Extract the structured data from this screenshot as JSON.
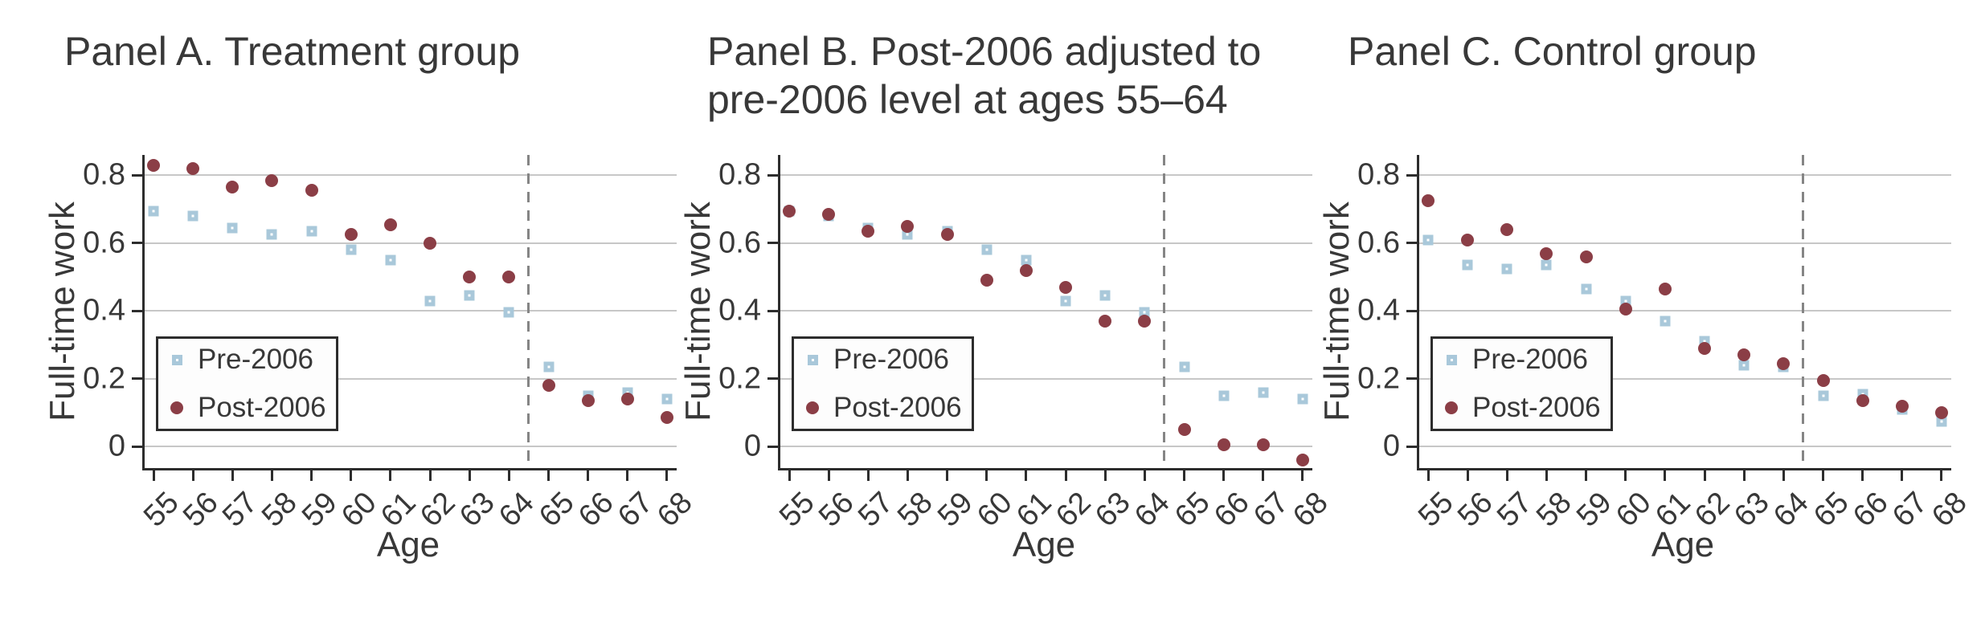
{
  "figure": {
    "colors": {
      "pre_marker": "#a9c8da",
      "post_marker": "#8b3e46",
      "grid": "#c7c7c7",
      "axis": "#2d2d2d",
      "dashed_line": "#858585",
      "text": "#383838",
      "legend_bg": "#fdfdfd"
    },
    "y_ticks": [
      {
        "label": "0.8",
        "v": 0.8
      },
      {
        "label": "0.6",
        "v": 0.6
      },
      {
        "label": "0.4",
        "v": 0.4
      },
      {
        "label": "0.2",
        "v": 0.2
      },
      {
        "label": "0",
        "v": 0.0
      }
    ]
  },
  "chart_data": [
    {
      "type": "scatter",
      "title": "Panel A. Treatment group",
      "title_line1": "Panel A. Treatment group",
      "title_line2": "",
      "xlabel": "Age",
      "ylabel": "Full-time work",
      "x": [
        55,
        56,
        57,
        58,
        59,
        60,
        61,
        62,
        63,
        64,
        65,
        66,
        67,
        68
      ],
      "series": [
        {
          "name": "Pre-2006",
          "marker": "square",
          "color": "#a9c8da",
          "values": [
            0.695,
            0.68,
            0.645,
            0.625,
            0.635,
            0.58,
            0.55,
            0.43,
            0.445,
            0.395,
            0.235,
            0.15,
            0.16,
            0.14
          ]
        },
        {
          "name": "Post-2006",
          "marker": "circle",
          "color": "#8b3e46",
          "values": [
            0.83,
            0.82,
            0.765,
            0.785,
            0.755,
            0.625,
            0.655,
            0.6,
            0.5,
            0.5,
            0.18,
            0.135,
            0.14,
            0.085
          ]
        }
      ],
      "vline_x": 64.5,
      "ylim": [
        -0.05,
        0.86
      ],
      "grid": true,
      "legend_position": "lower left"
    },
    {
      "type": "scatter",
      "title": "Panel B. Post-2006 adjusted to pre-2006 level at ages 55–64",
      "title_line1": "Panel B. Post-2006 adjusted to",
      "title_line2": "pre-2006 level at ages 55–64",
      "xlabel": "Age",
      "ylabel": "Full-time work",
      "x": [
        55,
        56,
        57,
        58,
        59,
        60,
        61,
        62,
        63,
        64,
        65,
        66,
        67,
        68
      ],
      "series": [
        {
          "name": "Pre-2006",
          "marker": "square",
          "color": "#a9c8da",
          "values": [
            0.695,
            0.68,
            0.645,
            0.625,
            0.635,
            0.58,
            0.55,
            0.43,
            0.445,
            0.395,
            0.235,
            0.15,
            0.16,
            0.14
          ]
        },
        {
          "name": "Post-2006",
          "marker": "circle",
          "color": "#8b3e46",
          "values": [
            0.695,
            0.685,
            0.635,
            0.65,
            0.625,
            0.49,
            0.52,
            0.47,
            0.37,
            0.37,
            0.05,
            0.005,
            0.005,
            -0.04
          ]
        }
      ],
      "vline_x": 64.5,
      "ylim": [
        -0.05,
        0.86
      ],
      "grid": true,
      "legend_position": "lower left"
    },
    {
      "type": "scatter",
      "title": "Panel C. Control group",
      "title_line1": "Panel C. Control group",
      "title_line2": "",
      "xlabel": "Age",
      "ylabel": "Full-time work",
      "x": [
        55,
        56,
        57,
        58,
        59,
        60,
        61,
        62,
        63,
        64,
        65,
        66,
        67,
        68
      ],
      "series": [
        {
          "name": "Pre-2006",
          "marker": "square",
          "color": "#a9c8da",
          "values": [
            0.61,
            0.535,
            0.525,
            0.535,
            0.465,
            0.43,
            0.37,
            0.31,
            0.24,
            0.235,
            0.15,
            0.155,
            0.11,
            0.075
          ]
        },
        {
          "name": "Post-2006",
          "marker": "circle",
          "color": "#8b3e46",
          "values": [
            0.725,
            0.61,
            0.64,
            0.57,
            0.56,
            0.405,
            0.465,
            0.29,
            0.27,
            0.245,
            0.195,
            0.135,
            0.12,
            0.1
          ]
        }
      ],
      "vline_x": 64.5,
      "ylim": [
        -0.05,
        0.86
      ],
      "grid": true,
      "legend_position": "lower left"
    }
  ]
}
